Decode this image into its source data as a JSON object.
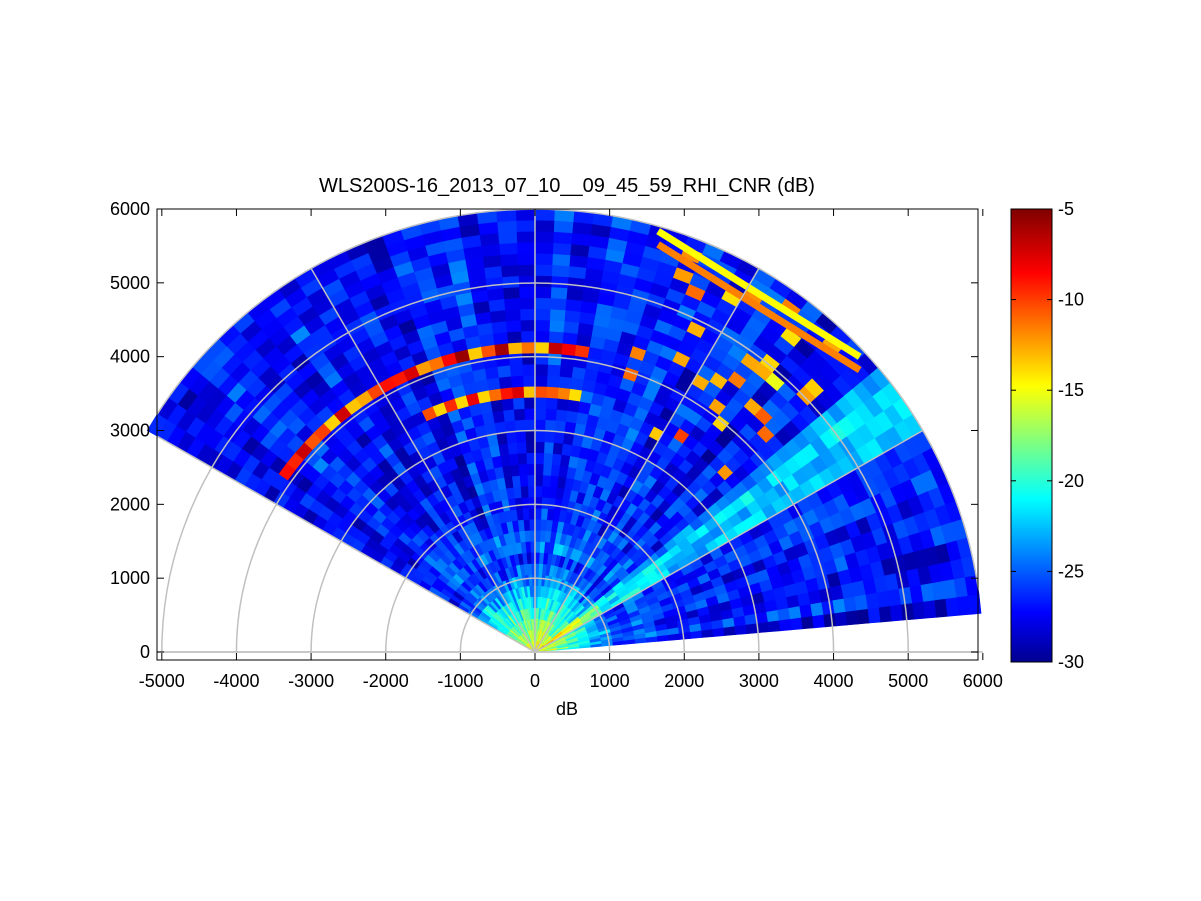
{
  "chart_data": {
    "type": "heatmap",
    "subtype": "polar-rhi-sector",
    "title": "WLS200S-16_2013_07_10__09_45_59_RHI_CNR (dB)",
    "xlabel": "dB",
    "ylabel": "",
    "xlim": [
      -5000,
      6000
    ],
    "ylim": [
      0,
      6000
    ],
    "xticks": [
      "-5000",
      "-4000",
      "-3000",
      "-2000",
      "-1000",
      "0",
      "1000",
      "2000",
      "3000",
      "4000",
      "5000",
      "6000"
    ],
    "yticks": [
      "0",
      "1000",
      "2000",
      "3000",
      "4000",
      "5000",
      "6000"
    ],
    "range_rings": [
      1000,
      2000,
      3000,
      4000,
      5000,
      6000
    ],
    "radial_spokes_deg": [
      0,
      30,
      60,
      90,
      120,
      150,
      180
    ],
    "scan_sector_deg": [
      5,
      150
    ],
    "max_range": 6000,
    "colorbar": {
      "colormap": "jet",
      "range": [
        -30,
        -5
      ],
      "ticks": [
        "-5",
        "-10",
        "-15",
        "-20",
        "-25",
        "-30"
      ]
    },
    "features": [
      {
        "name": "near-field high CNR",
        "range_m": [
          0,
          1200
        ],
        "cnr_db": [
          -20,
          -15
        ]
      },
      {
        "name": "cloud layer",
        "range_m": 4150,
        "elevation_deg": [
          79,
          145
        ],
        "cnr_db": [
          -12,
          -5
        ]
      },
      {
        "name": "cloud layer",
        "range_m": 3500,
        "elevation_deg": [
          80,
          116
        ],
        "cnr_db": [
          -12,
          -5
        ]
      },
      {
        "name": "hard target stripes",
        "elevation_deg": [
          43,
          73
        ],
        "cnr_db": [
          -15,
          -8
        ]
      },
      {
        "name": "background",
        "cnr_db": [
          -28,
          -24
        ]
      }
    ]
  }
}
